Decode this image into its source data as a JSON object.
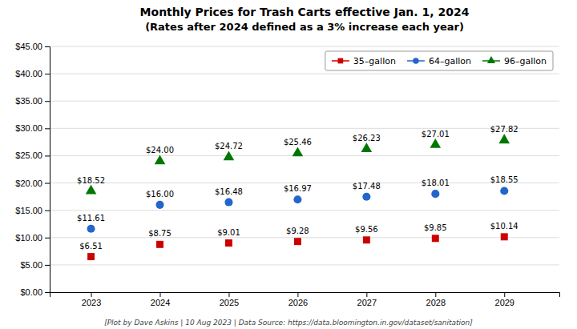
{
  "chart_data": {
    "type": "scatter",
    "title": "Monthly Prices for Trash Carts effective Jan. 1, 2024",
    "subtitle": "(Rates after 2024 defined as a 3% increase each year)",
    "footer": "[Plot by Dave Askins | 10 Aug 2023 | Data Source: https://data.bloomington.in.gov/dataset/sanitation]",
    "x": [
      2023,
      2024,
      2025,
      2026,
      2027,
      2028,
      2029
    ],
    "xlim": [
      2022.4,
      2029.8
    ],
    "xticks": [
      2023,
      2024,
      2025,
      2026,
      2027,
      2028,
      2029
    ],
    "ylim": [
      0,
      45
    ],
    "yticks": [
      {
        "value": 0,
        "label": "$0.00"
      },
      {
        "value": 5,
        "label": "$5.00"
      },
      {
        "value": 10,
        "label": "$10.00"
      },
      {
        "value": 15,
        "label": "$15.00"
      },
      {
        "value": 20,
        "label": "$20.00"
      },
      {
        "value": 25,
        "label": "$25.00"
      },
      {
        "value": 30,
        "label": "$30.00"
      },
      {
        "value": 35,
        "label": "$35.00"
      },
      {
        "value": 40,
        "label": "$40.00"
      },
      {
        "value": 45,
        "label": "$45.00"
      }
    ],
    "grid": true,
    "legend": "upper right",
    "data_labels": true,
    "series": [
      {
        "name": "35–gallon",
        "color": "#cc0000",
        "marker": "square",
        "values": [
          6.51,
          8.75,
          9.01,
          9.28,
          9.56,
          9.85,
          10.14
        ],
        "value_labels": [
          "$6.51",
          "$8.75",
          "$9.01",
          "$9.28",
          "$9.56",
          "$9.85",
          "$10.14"
        ]
      },
      {
        "name": "64–gallon",
        "color": "#2266cc",
        "marker": "circle",
        "values": [
          11.61,
          16.0,
          16.48,
          16.97,
          17.48,
          18.01,
          18.55
        ],
        "value_labels": [
          "$11.61",
          "$16.00",
          "$16.48",
          "$16.97",
          "$17.48",
          "$18.01",
          "$18.55"
        ]
      },
      {
        "name": "96–gallon",
        "color": "#007700",
        "marker": "triangle",
        "values": [
          18.52,
          24.0,
          24.72,
          25.46,
          26.23,
          27.01,
          27.82
        ],
        "value_labels": [
          "$18.52",
          "$24.00",
          "$24.72",
          "$25.46",
          "$26.23",
          "$27.01",
          "$27.82"
        ]
      }
    ]
  }
}
